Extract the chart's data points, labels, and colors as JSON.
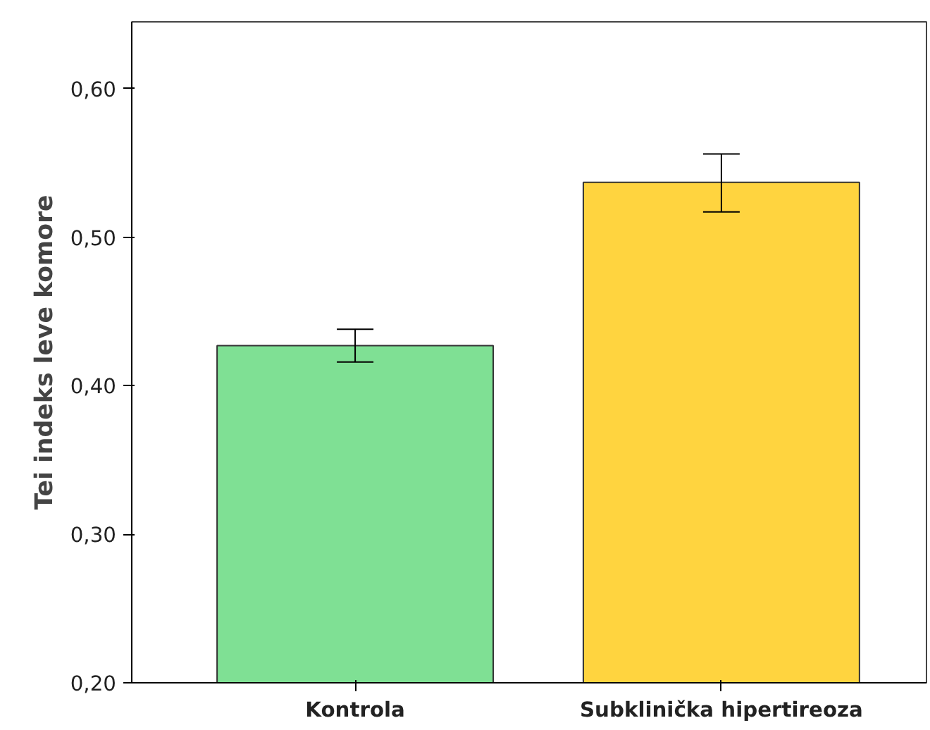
{
  "chart_data": {
    "type": "bar",
    "ylabel": "Tei indeks leve komore",
    "categories": [
      "Kontrola",
      "Subklinička hipertireoza"
    ],
    "values": [
      0.427,
      0.537
    ],
    "colors": [
      "#7fe094",
      "#ffd43f"
    ],
    "errors": [
      [
        0.416,
        0.438
      ],
      [
        0.517,
        0.556
      ]
    ],
    "ylim": [
      0.2,
      0.645
    ],
    "yticks": [
      {
        "value": 0.2,
        "label": "0,20"
      },
      {
        "value": 0.3,
        "label": "0,30"
      },
      {
        "value": 0.4,
        "label": "0,40"
      },
      {
        "value": 0.5,
        "label": "0,50"
      },
      {
        "value": 0.6,
        "label": "0,60"
      }
    ],
    "grid": false
  }
}
